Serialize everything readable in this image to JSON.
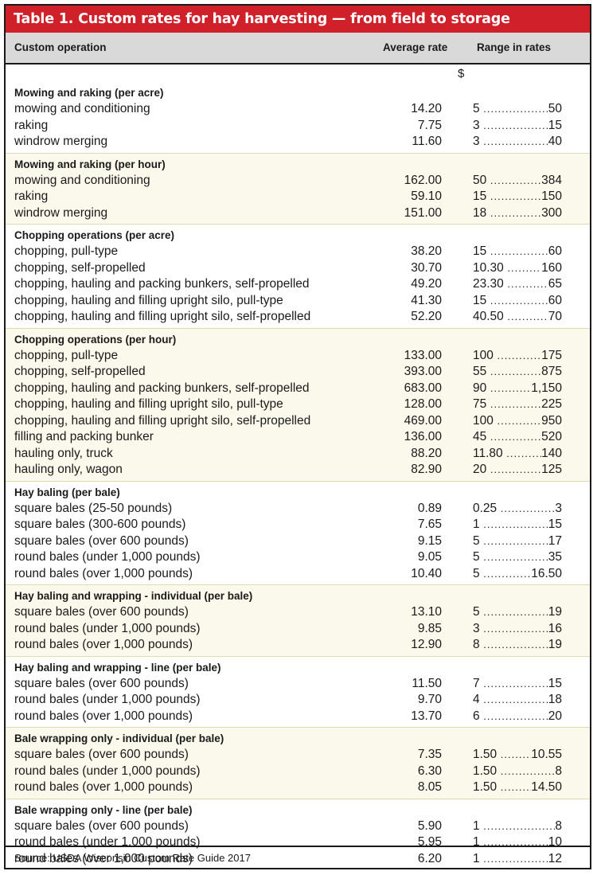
{
  "title": "Table 1. Custom rates for hay harvesting — from field to storage",
  "headers": {
    "operation": "Custom operation",
    "average": "Average rate",
    "range": "Range in rates"
  },
  "unit": "$",
  "sections": [
    {
      "title": "Mowing and raking (per acre)",
      "rows": [
        {
          "op": "mowing and conditioning",
          "avg": "14.20",
          "lo": "5",
          "hi": "50"
        },
        {
          "op": "raking",
          "avg": "7.75",
          "lo": "3",
          "hi": "15"
        },
        {
          "op": "windrow merging",
          "avg": "11.60",
          "lo": "3",
          "hi": "40"
        }
      ]
    },
    {
      "title": "Mowing and raking (per hour)",
      "rows": [
        {
          "op": "mowing and conditioning",
          "avg": "162.00",
          "lo": "50",
          "hi": "384"
        },
        {
          "op": "raking",
          "avg": "59.10",
          "lo": "15",
          "hi": "150"
        },
        {
          "op": "windrow merging",
          "avg": "151.00",
          "lo": "18",
          "hi": "300"
        }
      ]
    },
    {
      "title": "Chopping operations (per acre)",
      "rows": [
        {
          "op": "chopping, pull-type",
          "avg": "38.20",
          "lo": "15",
          "hi": "60"
        },
        {
          "op": "chopping, self-propelled",
          "avg": "30.70",
          "lo": "10.30",
          "hi": "160"
        },
        {
          "op": "chopping, hauling and packing bunkers, self-propelled",
          "avg": "49.20",
          "lo": "23.30",
          "hi": "65"
        },
        {
          "op": "chopping, hauling and filling upright silo, pull-type",
          "avg": "41.30",
          "lo": "15",
          "hi": "60"
        },
        {
          "op": "chopping, hauling and filling upright silo, self-propelled",
          "avg": "52.20",
          "lo": "40.50",
          "hi": "70"
        }
      ]
    },
    {
      "title": "Chopping operations (per hour)",
      "rows": [
        {
          "op": "chopping, pull-type",
          "avg": "133.00",
          "lo": "100",
          "hi": "175"
        },
        {
          "op": "chopping, self-propelled",
          "avg": "393.00",
          "lo": "55",
          "hi": "875"
        },
        {
          "op": "chopping, hauling and packing bunkers, self-propelled",
          "avg": "683.00",
          "lo": "90",
          "hi": "1,150"
        },
        {
          "op": "chopping, hauling and filling upright silo, pull-type",
          "avg": "128.00",
          "lo": "75",
          "hi": "225"
        },
        {
          "op": "chopping, hauling and filling upright silo, self-propelled",
          "avg": "469.00",
          "lo": "100",
          "hi": "950"
        },
        {
          "op": "filling and packing bunker",
          "avg": "136.00",
          "lo": "45",
          "hi": "520"
        },
        {
          "op": "hauling only, truck",
          "avg": "88.20",
          "lo": "11.80",
          "hi": "140"
        },
        {
          "op": "hauling only, wagon",
          "avg": "82.90",
          "lo": "20",
          "hi": "125"
        }
      ]
    },
    {
      "title": "Hay baling (per bale)",
      "rows": [
        {
          "op": "square bales (25-50 pounds)",
          "avg": "0.89",
          "lo": "0.25",
          "hi": "3"
        },
        {
          "op": "square bales (300-600 pounds)",
          "avg": "7.65",
          "lo": "1",
          "hi": "15"
        },
        {
          "op": "square bales (over 600 pounds)",
          "avg": "9.15",
          "lo": "5",
          "hi": "17"
        },
        {
          "op": "round bales (under 1,000 pounds)",
          "avg": "9.05",
          "lo": "5",
          "hi": "35"
        },
        {
          "op": "round bales (over 1,000 pounds)",
          "avg": "10.40",
          "lo": "5",
          "hi": "16.50"
        }
      ]
    },
    {
      "title": "Hay baling and wrapping - individual (per bale)",
      "rows": [
        {
          "op": "square bales (over 600 pounds)",
          "avg": "13.10",
          "lo": "5",
          "hi": "19"
        },
        {
          "op": "round bales (under 1,000 pounds)",
          "avg": "9.85",
          "lo": "3",
          "hi": "16"
        },
        {
          "op": "round bales (over 1,000 pounds)",
          "avg": "12.90",
          "lo": "8",
          "hi": "19"
        }
      ]
    },
    {
      "title": "Hay baling and wrapping - line (per bale)",
      "rows": [
        {
          "op": "square bales (over 600 pounds)",
          "avg": "11.50",
          "lo": "7",
          "hi": "15"
        },
        {
          "op": "round bales (under 1,000 pounds)",
          "avg": "9.70",
          "lo": "4",
          "hi": "18"
        },
        {
          "op": "round bales (over 1,000 pounds)",
          "avg": "13.70",
          "lo": "6",
          "hi": "20"
        }
      ]
    },
    {
      "title": "Bale wrapping only - individual (per bale)",
      "rows": [
        {
          "op": "square bales (over 600 pounds)",
          "avg": "7.35",
          "lo": "1.50",
          "hi": "10.55"
        },
        {
          "op": "round bales (under 1,000 pounds)",
          "avg": "6.30",
          "lo": "1.50",
          "hi": "8"
        },
        {
          "op": "round bales (over 1,000 pounds)",
          "avg": "8.05",
          "lo": "1.50",
          "hi": "14.50"
        }
      ]
    },
    {
      "title": "Bale wrapping only - line (per bale)",
      "rows": [
        {
          "op": "square bales (over 600 pounds)",
          "avg": "5.90",
          "lo": "1",
          "hi": "8"
        },
        {
          "op": "round bales (under 1,000 pounds)",
          "avg": "5.95",
          "lo": "1",
          "hi": "10"
        },
        {
          "op": "round bales (over 1,000 pounds)",
          "avg": "6.20",
          "lo": "1",
          "hi": "12"
        }
      ]
    }
  ],
  "source": "Source: USDA Wisconsin Custom Rate Guide 2017"
}
